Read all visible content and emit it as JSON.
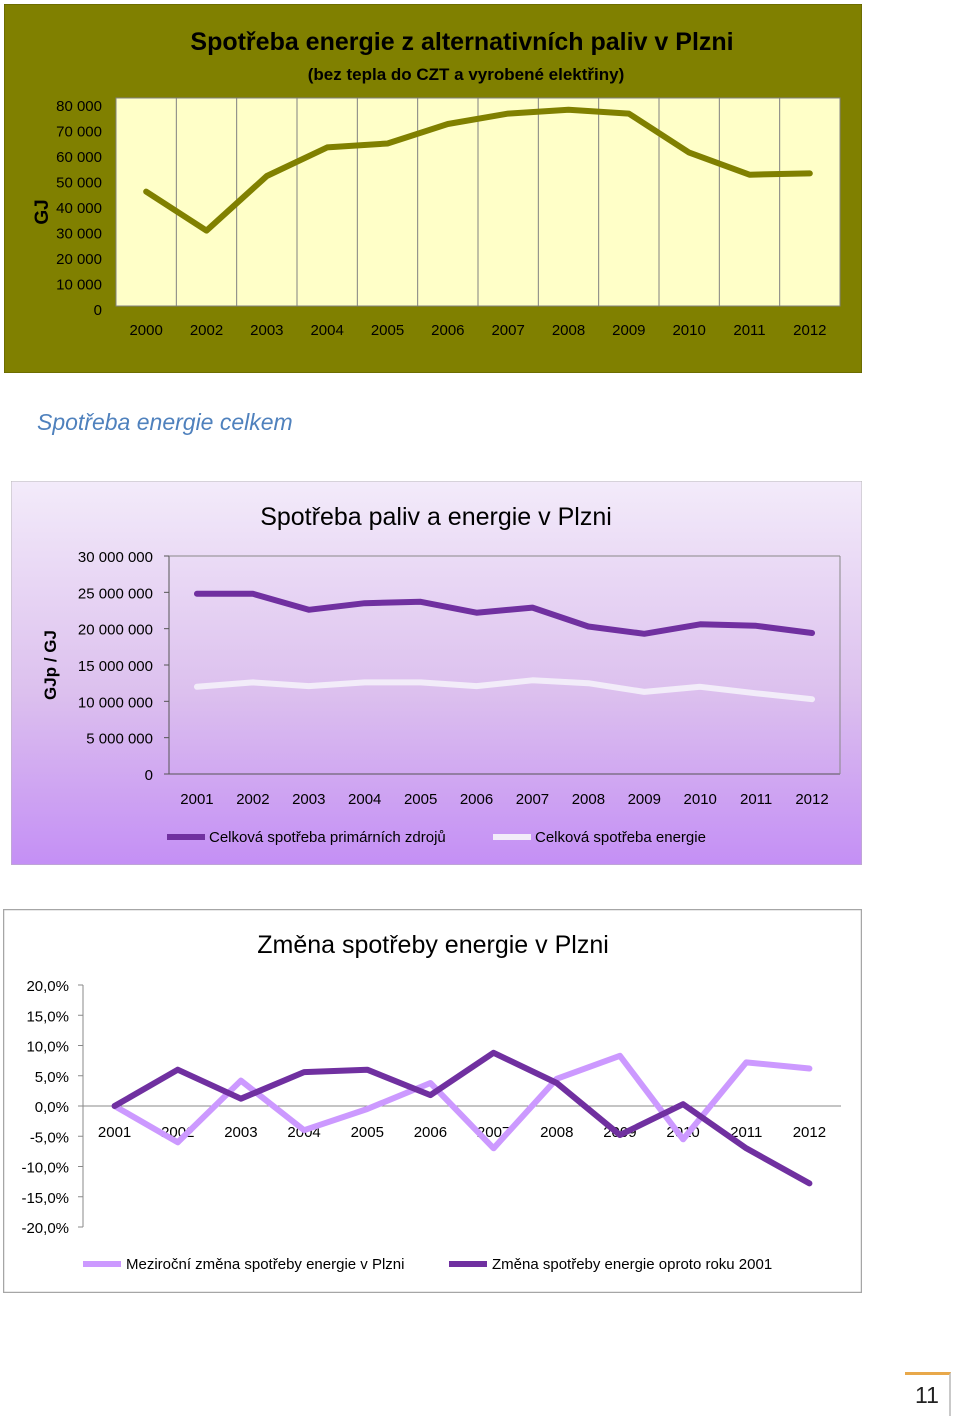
{
  "section": {
    "heading": "Spotřeba energie celkem"
  },
  "page": {
    "number": "11"
  },
  "colors": {
    "chart1_bg": "#808000",
    "chart1_plot": "#ffffc8",
    "chart1_line": "#808000",
    "chart2_bg_top": "#f3ebfa",
    "chart2_bg_bottom": "#c48ff5",
    "series_primary": "#7030a0",
    "series_total": "#f2ecf9",
    "chart3_yoy": "#cc99ff",
    "chart3_vs2001": "#7030a0"
  },
  "chart_data": [
    {
      "type": "line",
      "title": "Spotřeba energie z alternativních paliv v Plzni",
      "subtitle": "(bez tepla do CZT a vyrobené elektřiny)",
      "ylabel": "GJ",
      "xlabel": "",
      "x": [
        "2000",
        "2002",
        "2003",
        "2004",
        "2005",
        "2006",
        "2007",
        "2008",
        "2009",
        "2010",
        "2011",
        "2012"
      ],
      "y_ticks": [
        "80 000",
        "70 000",
        "60 000",
        "50 000",
        "40 000",
        "30 000",
        "20 000",
        "10 000",
        "0"
      ],
      "ylim": [
        0,
        80000
      ],
      "grid": "vertical",
      "series": [
        {
          "values": [
            44000,
            29000,
            50000,
            61000,
            62500,
            70000,
            74000,
            75500,
            74000,
            59000,
            50500,
            51000
          ]
        }
      ]
    },
    {
      "type": "line",
      "title": "Spotřeba paliv a energie v Plzni",
      "ylabel": "GJp / GJ",
      "xlabel": "",
      "x": [
        "2001",
        "2002",
        "2003",
        "2004",
        "2005",
        "2006",
        "2007",
        "2008",
        "2009",
        "2010",
        "2011",
        "2012"
      ],
      "y_ticks": [
        "30 000 000",
        "25 000 000",
        "20 000 000",
        "15 000 000",
        "10 000 000",
        "5 000 000",
        "0"
      ],
      "ylim": [
        0,
        30000000
      ],
      "grid": "none",
      "legend": "bottom",
      "series": [
        {
          "name": "Celková spotřeba primárních zdrojů",
          "values": [
            24800000,
            24800000,
            22600000,
            23500000,
            23700000,
            22200000,
            22900000,
            20300000,
            19300000,
            20600000,
            20400000,
            19400000
          ]
        },
        {
          "name": "Celková spotřeba energie",
          "values": [
            12000000,
            12600000,
            12100000,
            12600000,
            12600000,
            12100000,
            12900000,
            12500000,
            11300000,
            12000000,
            11100000,
            10300000
          ]
        }
      ]
    },
    {
      "type": "line",
      "title": "Změna spotřeby energie v Plzni",
      "xlabel": "",
      "ylabel": "",
      "x": [
        "2001",
        "2002",
        "2003",
        "2004",
        "2005",
        "2006",
        "2007",
        "2008",
        "2009",
        "2010",
        "2011",
        "2012"
      ],
      "y_ticks": [
        "20,0%",
        "15,0%",
        "10,0%",
        "5,0%",
        "0,0%",
        "-5,0%",
        "-10,0%",
        "-15,0%",
        "-20,0%"
      ],
      "ylim": [
        -20,
        20
      ],
      "grid": "none",
      "legend": "bottom",
      "series": [
        {
          "name": "Meziroční změna spotřeby energie v Plzni",
          "values": [
            0.0,
            -6.0,
            4.2,
            -4.0,
            -0.5,
            3.8,
            -7.0,
            4.5,
            8.3,
            -5.5,
            7.2,
            6.2
          ]
        },
        {
          "name": "Změna spotřeby energie oproto roku 2001",
          "values": [
            0.0,
            6.0,
            1.2,
            5.6,
            6.0,
            1.8,
            8.8,
            3.8,
            -4.8,
            0.3,
            -7.0,
            -12.8
          ]
        }
      ]
    }
  ]
}
